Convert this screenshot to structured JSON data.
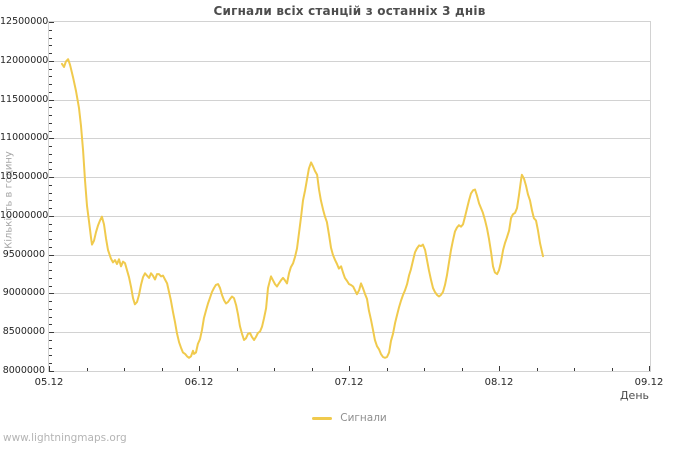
{
  "page": {
    "watermark": "www.lightningmaps.org",
    "background": "#ffffff"
  },
  "chart_data": {
    "type": "line",
    "title": "Сигнали всіх станцій з останніх 3 днів",
    "xlabel": "День",
    "ylabel": "Кількість в годину",
    "x_unit": "fractional days since 05.12 00:00 (dates are day.month)",
    "y_unit": "signals per hour, millions",
    "xlim": [
      0,
      4
    ],
    "ylim": [
      8,
      12.5
    ],
    "grid": {
      "horizontal": true,
      "vertical": false
    },
    "x_major_ticks": [
      {
        "t": 0,
        "label": "05.12"
      },
      {
        "t": 1,
        "label": "06.12"
      },
      {
        "t": 2,
        "label": "07.12"
      },
      {
        "t": 3,
        "label": "08.12"
      },
      {
        "t": 4,
        "label": "09.12"
      }
    ],
    "x_minor_step": 0.25,
    "y_major_ticks": [
      {
        "v": 8,
        "label": "8000000"
      },
      {
        "v": 8.5,
        "label": "8500000"
      },
      {
        "v": 9,
        "label": "9000000"
      },
      {
        "v": 9.5,
        "label": "9500000"
      },
      {
        "v": 10,
        "label": "10000000"
      },
      {
        "v": 10.5,
        "label": "10500000"
      },
      {
        "v": 11,
        "label": "11000000"
      },
      {
        "v": 11.5,
        "label": "11500000"
      },
      {
        "v": 12,
        "label": "12000000"
      },
      {
        "v": 12.5,
        "label": "12500000"
      }
    ],
    "y_minor_step": 0.1,
    "colors": {
      "line": "#f0ca4d",
      "grid": "#d2d2d2",
      "tick": "#3a3a3a",
      "tick_label": "#262626",
      "title": "#4d4d4d",
      "axis_unit_label": "#4d4d4d",
      "ylabel_text": "#a6a6a6",
      "legend_text": "#8f8f8f",
      "watermark": "#b4b4b4"
    },
    "legend": {
      "position": "bottom-center",
      "entries": [
        {
          "label": "Сигнали",
          "color": "#f0ca4d"
        }
      ]
    },
    "series": [
      {
        "name": "Сигнали",
        "t": [
          0.087,
          0.1,
          0.113,
          0.127,
          0.14,
          0.16,
          0.18,
          0.2,
          0.213,
          0.227,
          0.24,
          0.253,
          0.267,
          0.28,
          0.287,
          0.3,
          0.313,
          0.327,
          0.34,
          0.353,
          0.367,
          0.38,
          0.393,
          0.413,
          0.427,
          0.44,
          0.453,
          0.467,
          0.48,
          0.493,
          0.507,
          0.52,
          0.533,
          0.547,
          0.56,
          0.573,
          0.587,
          0.6,
          0.613,
          0.627,
          0.64,
          0.653,
          0.667,
          0.68,
          0.693,
          0.707,
          0.72,
          0.733,
          0.747,
          0.76,
          0.773,
          0.787,
          0.8,
          0.813,
          0.827,
          0.84,
          0.853,
          0.867,
          0.88,
          0.893,
          0.907,
          0.92,
          0.933,
          0.947,
          0.96,
          0.967,
          0.98,
          0.993,
          1.007,
          1.02,
          1.033,
          1.047,
          1.06,
          1.073,
          1.087,
          1.1,
          1.113,
          1.127,
          1.14,
          1.153,
          1.167,
          1.18,
          1.193,
          1.207,
          1.22,
          1.233,
          1.247,
          1.26,
          1.273,
          1.287,
          1.3,
          1.313,
          1.327,
          1.34,
          1.353,
          1.367,
          1.38,
          1.393,
          1.407,
          1.42,
          1.433,
          1.447,
          1.46,
          1.48,
          1.493,
          1.507,
          1.52,
          1.533,
          1.547,
          1.56,
          1.573,
          1.587,
          1.6,
          1.613,
          1.627,
          1.64,
          1.653,
          1.667,
          1.68,
          1.693,
          1.707,
          1.72,
          1.733,
          1.747,
          1.76,
          1.773,
          1.787,
          1.8,
          1.813,
          1.827,
          1.84,
          1.853,
          1.867,
          1.88,
          1.893,
          1.907,
          1.92,
          1.933,
          1.947,
          1.96,
          1.973,
          1.987,
          2.0,
          2.013,
          2.027,
          2.04,
          2.053,
          2.067,
          2.08,
          2.093,
          2.107,
          2.12,
          2.133,
          2.147,
          2.16,
          2.173,
          2.187,
          2.2,
          2.213,
          2.227,
          2.24,
          2.253,
          2.267,
          2.28,
          2.293,
          2.307,
          2.32,
          2.333,
          2.347,
          2.36,
          2.373,
          2.387,
          2.4,
          2.413,
          2.427,
          2.44,
          2.453,
          2.467,
          2.48,
          2.493,
          2.507,
          2.52,
          2.533,
          2.547,
          2.56,
          2.573,
          2.587,
          2.6,
          2.613,
          2.627,
          2.64,
          2.653,
          2.667,
          2.68,
          2.693,
          2.707,
          2.72,
          2.733,
          2.747,
          2.76,
          2.773,
          2.787,
          2.8,
          2.813,
          2.827,
          2.84,
          2.853,
          2.867,
          2.88,
          2.893,
          2.907,
          2.92,
          2.933,
          2.947,
          2.96,
          2.973,
          2.987,
          3.0,
          3.013,
          3.027,
          3.04,
          3.053,
          3.067,
          3.08,
          3.093,
          3.107,
          3.12,
          3.133,
          3.147,
          3.153,
          3.167,
          3.18,
          3.193,
          3.207,
          3.22,
          3.233,
          3.247,
          3.26,
          3.273,
          3.287,
          3.293
        ],
        "v": [
          11.96,
          11.92,
          11.99,
          12.02,
          11.95,
          11.79,
          11.61,
          11.39,
          11.16,
          10.84,
          10.46,
          10.13,
          9.92,
          9.72,
          9.63,
          9.68,
          9.79,
          9.88,
          9.94,
          9.99,
          9.89,
          9.71,
          9.56,
          9.45,
          9.4,
          9.43,
          9.38,
          9.44,
          9.35,
          9.41,
          9.39,
          9.3,
          9.21,
          9.08,
          8.94,
          8.86,
          8.89,
          8.98,
          9.11,
          9.21,
          9.26,
          9.23,
          9.2,
          9.26,
          9.23,
          9.18,
          9.25,
          9.25,
          9.22,
          9.23,
          9.18,
          9.13,
          9.02,
          8.91,
          8.76,
          8.63,
          8.49,
          8.37,
          8.3,
          8.24,
          8.22,
          8.19,
          8.17,
          8.19,
          8.26,
          8.22,
          8.24,
          8.35,
          8.41,
          8.53,
          8.68,
          8.78,
          8.87,
          8.94,
          9.02,
          9.07,
          9.11,
          9.12,
          9.07,
          8.98,
          8.91,
          8.87,
          8.89,
          8.93,
          8.96,
          8.94,
          8.85,
          8.73,
          8.58,
          8.48,
          8.4,
          8.42,
          8.48,
          8.49,
          8.44,
          8.4,
          8.44,
          8.49,
          8.51,
          8.57,
          8.68,
          8.81,
          9.07,
          9.22,
          9.17,
          9.12,
          9.09,
          9.13,
          9.17,
          9.2,
          9.17,
          9.13,
          9.26,
          9.34,
          9.39,
          9.47,
          9.58,
          9.79,
          9.98,
          10.2,
          10.33,
          10.47,
          10.61,
          10.69,
          10.64,
          10.58,
          10.53,
          10.34,
          10.2,
          10.08,
          9.99,
          9.92,
          9.75,
          9.59,
          9.5,
          9.43,
          9.38,
          9.32,
          9.35,
          9.27,
          9.2,
          9.16,
          9.12,
          9.11,
          9.09,
          9.04,
          8.99,
          9.04,
          9.13,
          9.07,
          8.99,
          8.93,
          8.78,
          8.66,
          8.53,
          8.4,
          8.32,
          8.28,
          8.22,
          8.18,
          8.17,
          8.18,
          8.24,
          8.39,
          8.48,
          8.62,
          8.72,
          8.82,
          8.91,
          8.98,
          9.04,
          9.12,
          9.23,
          9.31,
          9.43,
          9.53,
          9.58,
          9.62,
          9.61,
          9.63,
          9.56,
          9.43,
          9.3,
          9.17,
          9.07,
          9.02,
          8.98,
          8.96,
          8.98,
          9.02,
          9.11,
          9.23,
          9.4,
          9.56,
          9.68,
          9.8,
          9.85,
          9.88,
          9.86,
          9.89,
          9.99,
          10.1,
          10.2,
          10.29,
          10.33,
          10.34,
          10.26,
          10.16,
          10.1,
          10.04,
          9.94,
          9.84,
          9.71,
          9.53,
          9.35,
          9.27,
          9.25,
          9.3,
          9.4,
          9.56,
          9.65,
          9.72,
          9.81,
          9.97,
          10.02,
          10.04,
          10.1,
          10.26,
          10.46,
          10.53,
          10.48,
          10.39,
          10.28,
          10.2,
          10.07,
          9.97,
          9.94,
          9.81,
          9.65,
          9.53,
          9.48
        ]
      }
    ]
  }
}
